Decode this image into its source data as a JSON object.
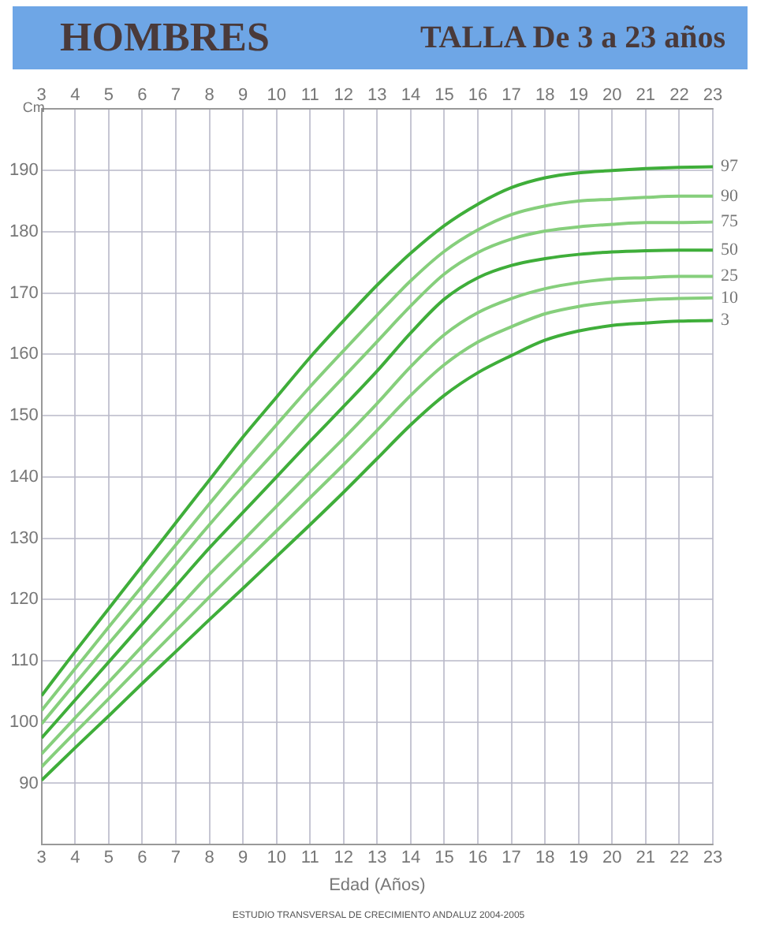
{
  "chart_data": {
    "type": "line",
    "title": "HOMBRES",
    "subtitle": "TALLA De 3 a 23 años",
    "xlabel": "Edad (Años)",
    "ylabel": "Cm",
    "x": [
      3,
      4,
      5,
      6,
      7,
      8,
      9,
      10,
      11,
      12,
      13,
      14,
      15,
      16,
      17,
      18,
      19,
      20,
      21,
      22,
      23
    ],
    "series": [
      {
        "name": "97",
        "color": "#3fae3a",
        "values": [
          104.3,
          111.5,
          118.5,
          125.5,
          132.5,
          139.5,
          146.5,
          153,
          159.5,
          165.5,
          171.3,
          176.5,
          181,
          184.5,
          187.2,
          188.8,
          189.6,
          190,
          190.3,
          190.5,
          190.6
        ]
      },
      {
        "name": "90",
        "color": "#86cf7c",
        "values": [
          101.9,
          108.7,
          115.5,
          122.2,
          128.9,
          135.6,
          142.2,
          148.5,
          154.7,
          160.6,
          166.4,
          172,
          176.8,
          180.3,
          182.8,
          184.2,
          185,
          185.3,
          185.6,
          185.8,
          185.8
        ]
      },
      {
        "name": "75",
        "color": "#86cf7c",
        "values": [
          99.7,
          106.3,
          112.8,
          119.2,
          125.7,
          132.2,
          138.4,
          144.4,
          150.5,
          156.3,
          162.1,
          167.9,
          173.1,
          176.6,
          178.8,
          180.1,
          180.8,
          181.2,
          181.5,
          181.5,
          181.6
        ]
      },
      {
        "name": "50",
        "color": "#3fae3a",
        "values": [
          97.4,
          103.6,
          109.8,
          116,
          122.2,
          128.4,
          134.2,
          140,
          145.8,
          151.5,
          157.3,
          163.5,
          169,
          172.5,
          174.5,
          175.6,
          176.3,
          176.7,
          176.9,
          177,
          177
        ]
      },
      {
        "name": "25",
        "color": "#86cf7c",
        "values": [
          94.8,
          100.7,
          106.5,
          112.4,
          118.2,
          124.1,
          129.6,
          135.2,
          140.8,
          146.3,
          152,
          158,
          163.2,
          166.8,
          169.1,
          170.7,
          171.7,
          172.3,
          172.5,
          172.7,
          172.7
        ]
      },
      {
        "name": "10",
        "color": "#86cf7c",
        "values": [
          92.7,
          98.3,
          103.8,
          109.4,
          114.9,
          120.4,
          125.8,
          131.2,
          136.6,
          142,
          147.6,
          153.3,
          158.3,
          162,
          164.5,
          166.6,
          167.8,
          168.5,
          168.9,
          169.1,
          169.2
        ]
      },
      {
        "name": "3",
        "color": "#3fae3a",
        "values": [
          90.5,
          95.8,
          101,
          106.3,
          111.5,
          116.7,
          121.8,
          127,
          132.2,
          137.5,
          143,
          148.5,
          153.3,
          157,
          159.8,
          162.3,
          163.8,
          164.7,
          165.1,
          165.4,
          165.5
        ]
      }
    ],
    "xlim": [
      3,
      23
    ],
    "xticks": [
      3,
      4,
      5,
      6,
      7,
      8,
      9,
      10,
      11,
      12,
      13,
      14,
      15,
      16,
      17,
      18,
      19,
      20,
      21,
      22,
      23
    ],
    "x2lim": [
      3,
      23
    ],
    "x2ticks": [
      3,
      4,
      5,
      6,
      7,
      8,
      9,
      10,
      11,
      12,
      13,
      14,
      15,
      16,
      17,
      18,
      19,
      20,
      21,
      22,
      23
    ],
    "ylim": [
      80,
      200
    ],
    "yticks": [
      {
        "value": 80,
        "label": null
      },
      90,
      100,
      110,
      120,
      130,
      140,
      150,
      160,
      170,
      180,
      190,
      {
        "value": 200,
        "label": null
      }
    ],
    "grid": true,
    "legend": false,
    "marker": "none",
    "line_style": "solid",
    "annotations": [
      "ESTUDIO TRANSVERSAL DE CRECIMIENTO ANDALUZ 2004-2005"
    ]
  }
}
